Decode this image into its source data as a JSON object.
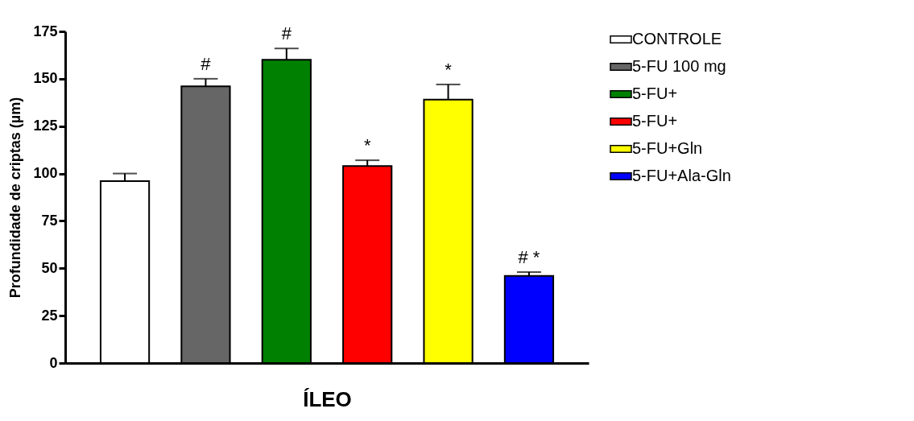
{
  "chart_data": {
    "type": "bar",
    "xlabel": "ÍLEO",
    "ylabel": "Profundidade de criptas (µm)",
    "categories": [
      null
    ],
    "ylim": [
      0,
      175
    ],
    "yticks": [
      0,
      25,
      50,
      75,
      100,
      125,
      150,
      175
    ],
    "legend": "right",
    "series": [
      {
        "name": "CONTROLE",
        "color": "#ffffff",
        "values": [
          96
        ],
        "errors": [
          4
        ]
      },
      {
        "name": "5-FU 100 mg",
        "color": "#666666",
        "values": [
          146
        ],
        "errors": [
          4
        ],
        "value_labels": [
          "#"
        ]
      },
      {
        "name": "5-FU+",
        "color": "#008000",
        "values": [
          160
        ],
        "errors": [
          6
        ],
        "value_labels": [
          "#"
        ]
      },
      {
        "name": "5-FU+",
        "color": "#ff0000",
        "values": [
          104
        ],
        "errors": [
          3
        ],
        "value_labels": [
          "*"
        ]
      },
      {
        "name": "5-FU+Gln",
        "color": "#ffff00",
        "values": [
          139
        ],
        "errors": [
          8
        ],
        "value_labels": [
          "*"
        ]
      },
      {
        "name": "5-FU+Ala-Gln",
        "color": "#0000ff",
        "values": [
          46
        ],
        "errors": [
          2
        ],
        "value_labels": [
          "#  *"
        ]
      }
    ]
  }
}
